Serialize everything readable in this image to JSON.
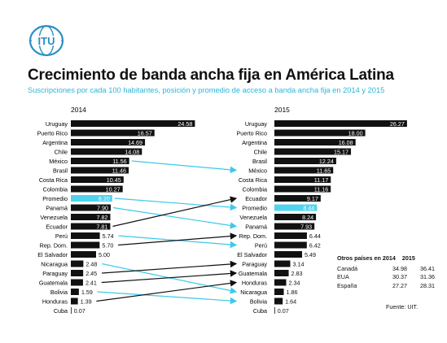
{
  "logo": {
    "text": "ITU",
    "icon": "itu-globe-icon"
  },
  "title": "Crecimiento de banda ancha fija en América Latina",
  "subtitle": "Suscripciones por cada 100 habitantes, posición y promedio de acceso a banda ancha fija en 2014 y 2015",
  "source": "Fuente: UIT.",
  "colors": {
    "bar": "#111111",
    "highlight": "#4fd3ee",
    "arrow_dark": "#111111",
    "arrow_light": "#3cc9ea",
    "subtitle": "#2ab7d9"
  },
  "other_countries": {
    "header_label": "Otros países en 2014",
    "header_year": "2015",
    "rows": [
      {
        "name": "Canadá",
        "v2014": "34.98",
        "v2015": "36.41"
      },
      {
        "name": "EUA",
        "v2014": "30.37",
        "v2015": "31.36"
      },
      {
        "name": "España",
        "v2014": "27.27",
        "v2015": "28.31"
      }
    ]
  },
  "chart_data": [
    {
      "type": "bar",
      "title": "2014",
      "categories": [
        "Uruguay",
        "Puerto Rico",
        "Argentina",
        "Chile",
        "México",
        "Brasil",
        "Costa Rica",
        "Colombia",
        "Promedio",
        "Panamá",
        "Venezuela",
        "Ecuador",
        "Perú",
        "Rep. Dom.",
        "El Salvador",
        "Nicaragua",
        "Paraguay",
        "Guatemala",
        "Bolivia",
        "Honduras",
        "Cuba"
      ],
      "values": [
        24.58,
        16.57,
        14.69,
        14.08,
        11.56,
        11.46,
        10.45,
        10.27,
        8.2,
        7.9,
        7.82,
        7.81,
        5.74,
        5.7,
        5.0,
        2.48,
        2.45,
        2.41,
        1.59,
        1.39,
        0.07
      ],
      "labels": [
        "24.58",
        "16.57",
        "14.69",
        "14.08",
        "11.56",
        "11.46",
        "10.45",
        "10.27",
        "8.20",
        "7.90",
        "7.82",
        "7.81",
        "5.74",
        "5.70",
        "5.00",
        "2.48",
        "2.45",
        "2.41",
        "1.59",
        "1.39",
        "0.07"
      ],
      "highlight": "Promedio"
    },
    {
      "type": "bar",
      "title": "2015",
      "categories": [
        "Uruguay",
        "Puerto Rico",
        "Argentina",
        "Chile",
        "Brasil",
        "México",
        "Costa Rica",
        "Colombia",
        "Ecuador",
        "Promedio",
        "Venezuela",
        "Panamá",
        "Rep. Dom.",
        "Perú",
        "El Salvador",
        "Paraguay",
        "Guatemala",
        "Honduras",
        "Nicaragua",
        "Bolivia",
        "Cuba"
      ],
      "values": [
        26.27,
        18.0,
        16.08,
        15.17,
        12.24,
        11.65,
        11.17,
        11.16,
        9.17,
        8.44,
        8.24,
        7.93,
        6.44,
        6.42,
        5.49,
        3.14,
        2.83,
        2.34,
        1.86,
        1.64,
        0.07
      ],
      "labels": [
        "26.27",
        "18.00",
        "16.08",
        "15.17",
        "12.24",
        "11.65",
        "11.17",
        "11.16",
        "9.17",
        "8.44",
        "8.24",
        "7.93",
        "6.44",
        "6.42",
        "5.49",
        "3.14",
        "2.83",
        "2.34",
        "1.86",
        "1.64",
        "0.07"
      ],
      "highlight": "Promedio"
    }
  ],
  "rank_changes": [
    {
      "country": "México",
      "from": 4,
      "to": 5,
      "style": "light"
    },
    {
      "country": "Promedio",
      "from": 8,
      "to": 9,
      "style": "light"
    },
    {
      "country": "Panamá",
      "from": 9,
      "to": 11,
      "style": "light"
    },
    {
      "country": "Ecuador",
      "from": 11,
      "to": 8,
      "style": "dark"
    },
    {
      "country": "Perú",
      "from": 12,
      "to": 13,
      "style": "light"
    },
    {
      "country": "Rep. Dom.",
      "from": 13,
      "to": 12,
      "style": "dark"
    },
    {
      "country": "Nicaragua",
      "from": 15,
      "to": 18,
      "style": "light"
    },
    {
      "country": "Paraguay",
      "from": 16,
      "to": 15,
      "style": "dark"
    },
    {
      "country": "Guatemala",
      "from": 17,
      "to": 16,
      "style": "dark"
    },
    {
      "country": "Bolivia",
      "from": 18,
      "to": 19,
      "style": "light"
    },
    {
      "country": "Honduras",
      "from": 19,
      "to": 17,
      "style": "dark"
    }
  ]
}
